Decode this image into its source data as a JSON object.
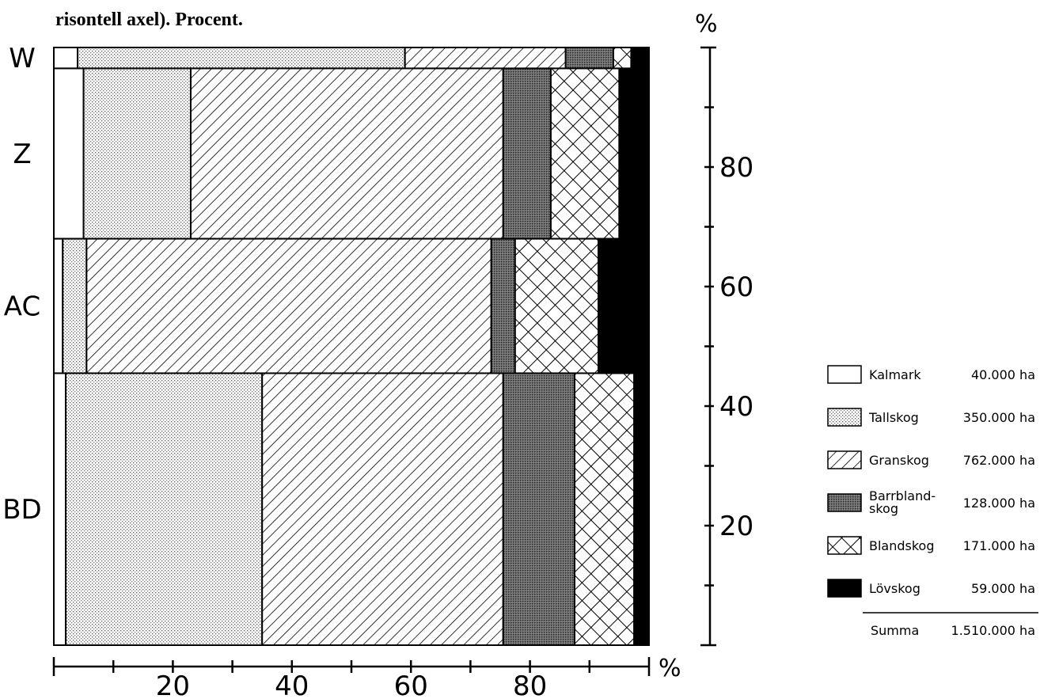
{
  "caption": "risontell axel). Procent.",
  "chart_data": {
    "type": "bar",
    "orientation": "horizontal-stacked",
    "categories": [
      "W",
      "Z",
      "AC",
      "BD"
    ],
    "category_share": [
      3.5,
      28.5,
      22.5,
      45.5
    ],
    "series": [
      {
        "name": "Kalmark",
        "values": [
          4,
          5,
          1.5,
          2
        ],
        "pattern": "white"
      },
      {
        "name": "Tallskog",
        "values": [
          55,
          18,
          4,
          33
        ],
        "pattern": "dots"
      },
      {
        "name": "Granskog",
        "values": [
          27,
          52.5,
          68,
          40.5
        ],
        "pattern": "hatch"
      },
      {
        "name": "Barrblandskog",
        "values": [
          8,
          8,
          4,
          12
        ],
        "pattern": "dense"
      },
      {
        "name": "Blandskog",
        "values": [
          3,
          11.5,
          14,
          10
        ],
        "pattern": "cross"
      },
      {
        "name": "Lövskog",
        "values": [
          3,
          5,
          8.5,
          2.5
        ],
        "pattern": "black"
      }
    ],
    "xlim": [
      0,
      100
    ],
    "ylim": [
      0,
      100
    ],
    "x_ticks": [
      20,
      40,
      60,
      80
    ],
    "y_ticks": [
      20,
      40,
      60,
      80
    ],
    "xlabel": "%",
    "ylabel": "%"
  },
  "legend": [
    {
      "name": "Kalmark",
      "area": "40.000 ha",
      "pattern": "white"
    },
    {
      "name": "Tallskog",
      "area": "350.000 ha",
      "pattern": "dots"
    },
    {
      "name": "Granskog",
      "area": "762.000 ha",
      "pattern": "hatch"
    },
    {
      "name": "Barrbland-",
      "name2": "skog",
      "area": "128.000 ha",
      "pattern": "dense"
    },
    {
      "name": "Blandskog",
      "area": "171.000 ha",
      "pattern": "cross"
    },
    {
      "name": "Lövskog",
      "area": "59.000 ha",
      "pattern": "black"
    }
  ],
  "legend_total": {
    "label": "Summa",
    "area": "1.510.000 ha"
  }
}
